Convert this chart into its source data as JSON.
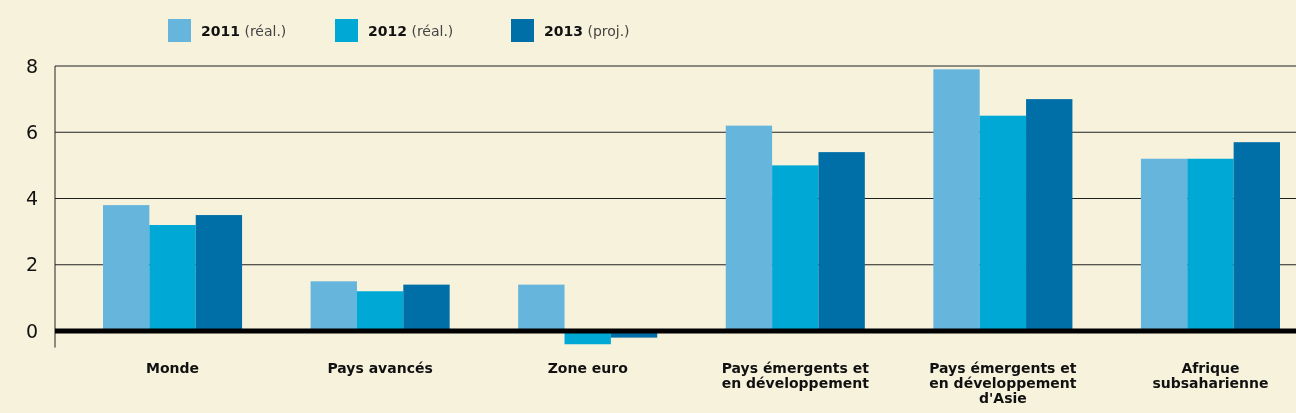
{
  "chart_data": {
    "type": "bar",
    "categories": [
      "Monde",
      "Pays avancés",
      "Zone euro",
      "Pays émergents et en développement",
      "Pays émergents et en développement d'Asie",
      "Afrique subsaharienne"
    ],
    "series": [
      {
        "name": "2011 (réal.)",
        "color": "#65b5dc",
        "values": [
          3.8,
          1.5,
          1.4,
          6.2,
          7.9,
          5.2
        ]
      },
      {
        "name": "2012 (réal.)",
        "color": "#00a8d5",
        "values": [
          3.2,
          1.2,
          -0.4,
          5.0,
          6.5,
          5.2
        ]
      },
      {
        "name": "2013 (proj.)",
        "color": "#006fa8",
        "values": [
          3.5,
          1.4,
          -0.2,
          5.4,
          7.0,
          5.7
        ]
      }
    ],
    "ylim": [
      -0.5,
      8
    ],
    "yticks": [
      0,
      2,
      4,
      6,
      8
    ],
    "grid": "y",
    "legend": "top"
  }
}
